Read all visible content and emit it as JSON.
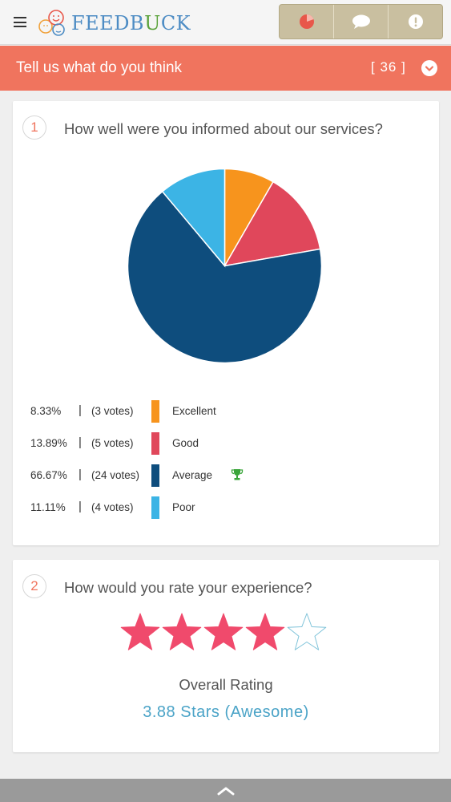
{
  "app": {
    "logo_text_a": "FEEDB",
    "logo_text_u": "U",
    "logo_text_b": "CK",
    "toolbar": [
      {
        "icon": "pie-chart-icon",
        "color": "#e8574a"
      },
      {
        "icon": "chat-bubble-icon",
        "color": "#ffffff"
      },
      {
        "icon": "alert-icon",
        "color": "#ffffff"
      }
    ]
  },
  "header": {
    "title": "Tell us what do you think",
    "count": "[ 36 ]"
  },
  "questions": [
    {
      "number": "1",
      "text": "How well were you informed about our services?",
      "legend": [
        {
          "pct": "8.33%",
          "votes": "(3 votes)",
          "label": "Excellent",
          "color": "#f7941d"
        },
        {
          "pct": "13.89%",
          "votes": "(5 votes)",
          "label": "Good",
          "color": "#e0475b"
        },
        {
          "pct": "66.67%",
          "votes": "(24 votes)",
          "label": "Average",
          "color": "#0e4d7d",
          "winner": true
        },
        {
          "pct": "11.11%",
          "votes": "(4 votes)",
          "label": "Poor",
          "color": "#3cb4e5"
        }
      ]
    },
    {
      "number": "2",
      "text": "How would you rate your experience?",
      "rating_label": "Overall Rating",
      "rating_value": "3.88 Stars (Awesome)",
      "stars_filled": 4,
      "stars_total": 5,
      "star_color": "#f04a6c"
    }
  ],
  "chart_data": {
    "type": "pie",
    "categories": [
      "Excellent",
      "Good",
      "Average",
      "Poor"
    ],
    "values": [
      8.33,
      13.89,
      66.67,
      11.11
    ],
    "votes": [
      3,
      5,
      24,
      4
    ],
    "colors": [
      "#f7941d",
      "#e0475b",
      "#0e4d7d",
      "#3cb4e5"
    ],
    "title": ""
  }
}
